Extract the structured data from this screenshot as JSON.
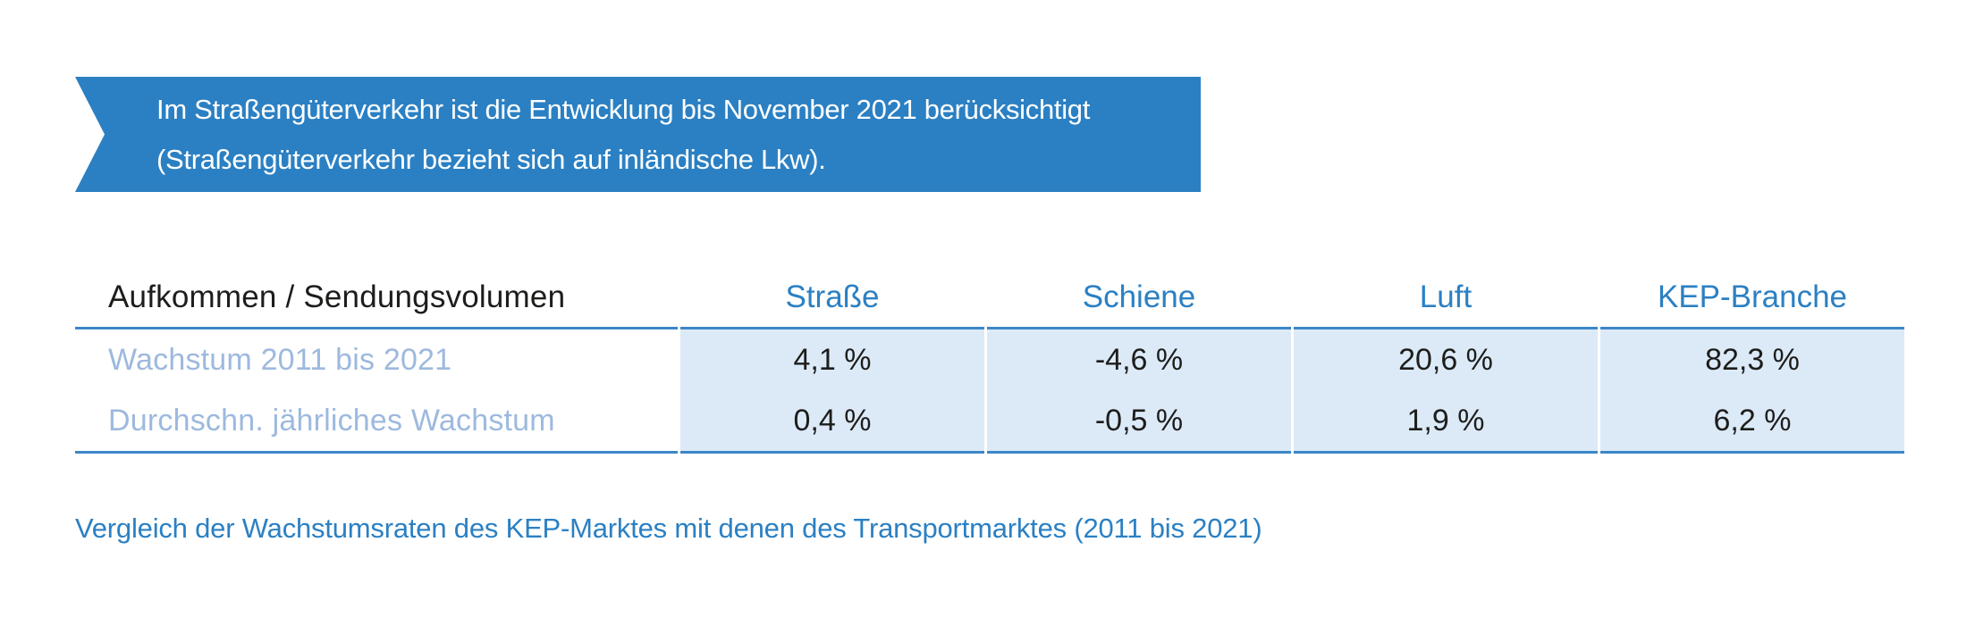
{
  "banner": {
    "line1": "Im Straßengüterverkehr ist die Entwicklung bis November 2021 berücksichtigt",
    "line2": "(Straßengüterverkehr bezieht sich auf inländische Lkw)."
  },
  "table": {
    "header": {
      "row_label": "Aufkommen / Sendungsvolumen",
      "columns": [
        "Straße",
        "Schiene",
        "Luft",
        "KEP-Branche"
      ]
    },
    "rows": [
      {
        "label": "Wachstum 2011 bis 2021",
        "values": [
          "4,1 %",
          "-4,6 %",
          "20,6 %",
          "82,3 %"
        ]
      },
      {
        "label": "Durchschn. jährliches Wachstum",
        "values": [
          "0,4 %",
          "-0,5 %",
          "1,9 %",
          "6,2 %"
        ]
      }
    ]
  },
  "caption": {
    "text": "Vergleich der Wachstumsraten des KEP-Marktes mit denen des Transportmarktes (2011 bis 2021)"
  },
  "colors": {
    "accent": "#2b80c3",
    "rule": "#3c86c8",
    "shade": "#dceaf8",
    "label": "#9db9de",
    "dark": "#1d1d1b",
    "banner_text": "#ffffff"
  }
}
